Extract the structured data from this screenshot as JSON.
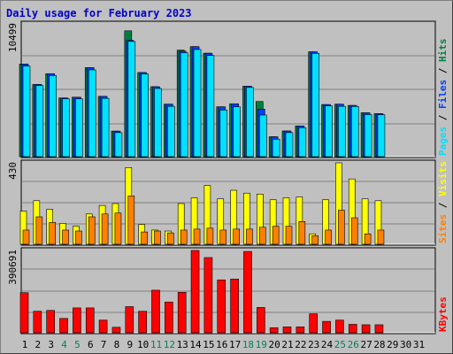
{
  "title": "Daily usage for February 2023",
  "colors": {
    "hits": "#008040",
    "files": "#0040ff",
    "pages": "#00e0ff",
    "visits": "#ffff00",
    "sites": "#ff8000",
    "kbytes": "#ff0000",
    "weekday_label": "#000000",
    "weekend_label": "#00805c",
    "slash": "#000000"
  },
  "chart_data": [
    {
      "type": "bar",
      "panel": "top",
      "ylabel": "10499",
      "ymax": 10499,
      "right_labels": [
        {
          "text": "Pages",
          "color_key": "pages"
        },
        {
          "text": "Files",
          "color_key": "files"
        },
        {
          "text": "Hits",
          "color_key": "hits"
        }
      ],
      "categories": [
        "1",
        "2",
        "3",
        "4",
        "5",
        "6",
        "7",
        "8",
        "9",
        "10",
        "11",
        "12",
        "13",
        "14",
        "15",
        "16",
        "17",
        "18",
        "19",
        "20",
        "21",
        "22",
        "23",
        "24",
        "25",
        "26",
        "27",
        "28"
      ],
      "series": [
        {
          "name": "Hits",
          "color_key": "hits",
          "values": [
            7320,
            5710,
            6560,
            4640,
            4700,
            7040,
            4770,
            2020,
            9950,
            6650,
            5530,
            4150,
            8420,
            8700,
            8180,
            3940,
            4180,
            5570,
            4360,
            1570,
            2030,
            2420,
            8290,
            4120,
            4150,
            4050,
            3470,
            3400
          ]
        },
        {
          "name": "Files",
          "color_key": "files",
          "values": [
            7320,
            5710,
            6560,
            4640,
            4700,
            7040,
            4770,
            2020,
            9200,
            6650,
            5530,
            4150,
            8350,
            8700,
            8180,
            3940,
            4180,
            5570,
            3760,
            1570,
            2030,
            2420,
            8290,
            4120,
            4150,
            4050,
            3470,
            3400
          ]
        },
        {
          "name": "Pages",
          "color_key": "pages",
          "values": [
            7160,
            5620,
            6420,
            4570,
            4570,
            6860,
            4610,
            1900,
            9110,
            6540,
            5390,
            3980,
            8220,
            8470,
            8000,
            3690,
            3940,
            5470,
            3290,
            1380,
            1900,
            2290,
            8170,
            4010,
            3980,
            3970,
            3330,
            3310
          ]
        }
      ]
    },
    {
      "type": "bar",
      "panel": "middle",
      "ylabel": "430",
      "ymax": 430,
      "right_labels": [
        {
          "text": "Sites",
          "color_key": "sites"
        },
        {
          "text": "Visits",
          "color_key": "visits"
        }
      ],
      "categories": [
        "1",
        "2",
        "3",
        "4",
        "5",
        "6",
        "7",
        "8",
        "9",
        "10",
        "11",
        "12",
        "13",
        "14",
        "15",
        "16",
        "17",
        "18",
        "19",
        "20",
        "21",
        "22",
        "23",
        "24",
        "25",
        "26",
        "27",
        "28"
      ],
      "series": [
        {
          "name": "Visits",
          "color_key": "visits",
          "values": [
            175,
            230,
            185,
            110,
            95,
            160,
            205,
            215,
            405,
            105,
            75,
            70,
            215,
            245,
            310,
            240,
            285,
            270,
            265,
            235,
            245,
            250,
            55,
            235,
            430,
            345,
            240,
            230
          ]
        },
        {
          "name": "Sites",
          "color_key": "sites",
          "values": [
            75,
            145,
            115,
            75,
            70,
            145,
            160,
            165,
            255,
            65,
            70,
            60,
            75,
            80,
            85,
            75,
            80,
            80,
            90,
            95,
            95,
            120,
            45,
            75,
            180,
            140,
            55,
            75
          ]
        }
      ]
    },
    {
      "type": "bar",
      "panel": "bottom",
      "ylabel": "390691",
      "ymax": 390691,
      "right_labels": [
        {
          "text": "KBytes",
          "color_key": "kbytes"
        }
      ],
      "categories": [
        "1",
        "2",
        "3",
        "4",
        "5",
        "6",
        "7",
        "8",
        "9",
        "10",
        "11",
        "12",
        "13",
        "14",
        "15",
        "16",
        "17",
        "18",
        "19",
        "20",
        "21",
        "22",
        "23",
        "24",
        "25",
        "26",
        "27",
        "28"
      ],
      "series": [
        {
          "name": "KBytes",
          "color_key": "kbytes",
          "values": [
            190000,
            102000,
            106000,
            68000,
            118000,
            118000,
            60000,
            26000,
            124000,
            102000,
            202000,
            146000,
            192000,
            390691,
            357000,
            251000,
            255000,
            386000,
            120000,
            24000,
            28000,
            28000,
            90000,
            54000,
            60000,
            40000,
            38000,
            38000
          ]
        }
      ]
    }
  ],
  "x_axis": {
    "labels": [
      "1",
      "2",
      "3",
      "4",
      "5",
      "6",
      "7",
      "8",
      "9",
      "10",
      "11",
      "12",
      "13",
      "14",
      "15",
      "16",
      "17",
      "18",
      "19",
      "20",
      "21",
      "22",
      "23",
      "24",
      "25",
      "26",
      "27",
      "28",
      "29",
      "30",
      "31"
    ],
    "weekend": [
      4,
      5,
      11,
      12,
      18,
      19,
      25,
      26
    ]
  }
}
